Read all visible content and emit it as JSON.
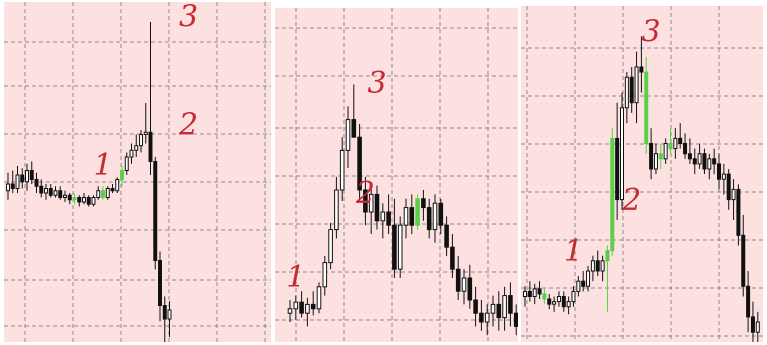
{
  "colors": {
    "background": "#fce1e0",
    "grid": "#8a8a8a",
    "candle_outline": "#111111",
    "highlight_candle": "#5ccf4a",
    "annotation": "#c62a35"
  },
  "chart_data": [
    {
      "type": "candlestick",
      "grid": true,
      "ylim": [
        0,
        100
      ],
      "annotations": [
        {
          "text": "1",
          "x": 20,
          "y": 60
        },
        {
          "text": "2",
          "x": 38,
          "y": 78
        },
        {
          "text": "3",
          "x": 38,
          "y": 126
        }
      ],
      "candles": [
        [
          53,
          61,
          49,
          56
        ],
        [
          56,
          62,
          52,
          54
        ],
        [
          54,
          64,
          52,
          60
        ],
        [
          60,
          63,
          54,
          57
        ],
        [
          57,
          65,
          53,
          62
        ],
        [
          62,
          66,
          56,
          58
        ],
        [
          58,
          61,
          52,
          55
        ],
        [
          55,
          58,
          50,
          52
        ],
        [
          52,
          56,
          49,
          54
        ],
        [
          54,
          56,
          50,
          51
        ],
        [
          51,
          55,
          50,
          53
        ],
        [
          53,
          55,
          49,
          50
        ],
        [
          50,
          53,
          48,
          51
        ],
        [
          51,
          52,
          47,
          49
        ],
        [
          49,
          52,
          47,
          50
        ],
        [
          50,
          51,
          46,
          48
        ],
        [
          48,
          52,
          47,
          50
        ],
        [
          50,
          51,
          46,
          47
        ],
        [
          47,
          51,
          46,
          50
        ],
        [
          50,
          55,
          49,
          53
        ],
        [
          53,
          55,
          49,
          50
        ],
        [
          50,
          55,
          49,
          54
        ],
        [
          54,
          56,
          52,
          53
        ],
        [
          53,
          59,
          52,
          58
        ],
        [
          58,
          64,
          55,
          62
        ],
        [
          62,
          70,
          60,
          68
        ],
        [
          68,
          74,
          65,
          71
        ],
        [
          71,
          78,
          68,
          73
        ],
        [
          73,
          80,
          70,
          78
        ],
        [
          78,
          92,
          74,
          79
        ],
        [
          79,
          128,
          60,
          66
        ],
        [
          66,
          68,
          18,
          22
        ],
        [
          22,
          26,
          -5,
          2
        ],
        [
          2,
          6,
          -15,
          -4
        ],
        [
          -4,
          4,
          -12,
          0
        ]
      ],
      "green": [
        14,
        20,
        24
      ]
    },
    {
      "type": "candlestick",
      "grid": true,
      "ylim": [
        0,
        100
      ],
      "annotations": [
        {
          "text": "1",
          "x": 1,
          "y": 16
        },
        {
          "text": "2",
          "x": 13,
          "y": 54
        },
        {
          "text": "3",
          "x": 15,
          "y": 104
        }
      ],
      "candles": [
        [
          4,
          10,
          0,
          6
        ],
        [
          6,
          12,
          1,
          9
        ],
        [
          9,
          14,
          2,
          4
        ],
        [
          4,
          11,
          -2,
          8
        ],
        [
          8,
          14,
          3,
          6
        ],
        [
          6,
          18,
          4,
          16
        ],
        [
          16,
          30,
          12,
          27
        ],
        [
          27,
          45,
          24,
          42
        ],
        [
          42,
          66,
          38,
          60
        ],
        [
          60,
          84,
          55,
          78
        ],
        [
          78,
          98,
          70,
          92
        ],
        [
          92,
          108,
          84,
          84
        ],
        [
          84,
          90,
          56,
          60
        ],
        [
          60,
          66,
          44,
          50
        ],
        [
          50,
          62,
          40,
          58
        ],
        [
          58,
          62,
          42,
          46
        ],
        [
          46,
          54,
          38,
          50
        ],
        [
          50,
          58,
          40,
          44
        ],
        [
          44,
          56,
          20,
          24
        ],
        [
          24,
          48,
          20,
          44
        ],
        [
          44,
          56,
          38,
          52
        ],
        [
          52,
          58,
          40,
          44
        ],
        [
          44,
          58,
          42,
          56
        ],
        [
          56,
          60,
          46,
          52
        ],
        [
          52,
          56,
          38,
          42
        ],
        [
          42,
          58,
          36,
          54
        ],
        [
          54,
          56,
          40,
          44
        ],
        [
          44,
          48,
          30,
          34
        ],
        [
          34,
          40,
          20,
          24
        ],
        [
          24,
          30,
          10,
          14
        ],
        [
          14,
          24,
          8,
          20
        ],
        [
          20,
          26,
          6,
          10
        ],
        [
          10,
          16,
          -2,
          4
        ],
        [
          4,
          10,
          -4,
          0
        ],
        [
          0,
          8,
          -6,
          4
        ],
        [
          4,
          12,
          -2,
          8
        ],
        [
          8,
          14,
          -4,
          2
        ],
        [
          2,
          16,
          -4,
          12
        ],
        [
          12,
          18,
          -2,
          4
        ],
        [
          4,
          8,
          -6,
          -2
        ]
      ],
      "green": [
        22
      ]
    },
    {
      "type": "candlestick",
      "grid": true,
      "ylim": [
        0,
        100
      ],
      "annotations": [
        {
          "text": "1",
          "x": 10,
          "y": 24
        },
        {
          "text": "2",
          "x": 22,
          "y": 44
        },
        {
          "text": "3",
          "x": 26,
          "y": 110
        }
      ],
      "candles": [
        [
          10,
          14,
          6,
          12
        ],
        [
          12,
          16,
          8,
          10
        ],
        [
          10,
          15,
          7,
          13
        ],
        [
          13,
          16,
          9,
          11
        ],
        [
          11,
          13,
          7,
          9
        ],
        [
          9,
          11,
          5,
          7
        ],
        [
          7,
          10,
          4,
          8
        ],
        [
          8,
          12,
          6,
          10
        ],
        [
          10,
          12,
          4,
          6
        ],
        [
          6,
          10,
          3,
          8
        ],
        [
          8,
          14,
          6,
          12
        ],
        [
          12,
          18,
          10,
          16
        ],
        [
          16,
          20,
          12,
          14
        ],
        [
          14,
          22,
          12,
          20
        ],
        [
          20,
          26,
          16,
          24
        ],
        [
          24,
          28,
          18,
          20
        ],
        [
          20,
          26,
          16,
          24
        ],
        [
          24,
          30,
          4,
          28
        ],
        [
          28,
          76,
          26,
          72
        ],
        [
          72,
          86,
          40,
          48
        ],
        [
          48,
          90,
          44,
          84
        ],
        [
          84,
          98,
          78,
          96
        ],
        [
          96,
          100,
          82,
          86
        ],
        [
          86,
          106,
          78,
          100
        ],
        [
          100,
          112,
          90,
          98
        ],
        [
          98,
          104,
          66,
          70
        ],
        [
          70,
          76,
          56,
          60
        ],
        [
          60,
          70,
          58,
          66
        ],
        [
          66,
          70,
          60,
          64
        ],
        [
          64,
          72,
          62,
          70
        ],
        [
          70,
          76,
          66,
          68
        ],
        [
          68,
          76,
          64,
          72
        ],
        [
          72,
          78,
          68,
          70
        ],
        [
          70,
          74,
          64,
          66
        ],
        [
          66,
          72,
          62,
          64
        ],
        [
          64,
          68,
          58,
          62
        ],
        [
          62,
          70,
          60,
          66
        ],
        [
          66,
          68,
          58,
          60
        ],
        [
          60,
          66,
          56,
          64
        ],
        [
          64,
          68,
          58,
          62
        ],
        [
          62,
          66,
          52,
          56
        ],
        [
          56,
          62,
          50,
          58
        ],
        [
          58,
          60,
          44,
          48
        ],
        [
          48,
          56,
          40,
          52
        ],
        [
          52,
          54,
          30,
          34
        ],
        [
          34,
          42,
          10,
          14
        ],
        [
          14,
          20,
          -4,
          2
        ],
        [
          2,
          8,
          -8,
          -4
        ],
        [
          -4,
          4,
          -10,
          0
        ]
      ],
      "green": [
        4,
        17,
        18,
        25,
        28,
        30
      ]
    }
  ]
}
